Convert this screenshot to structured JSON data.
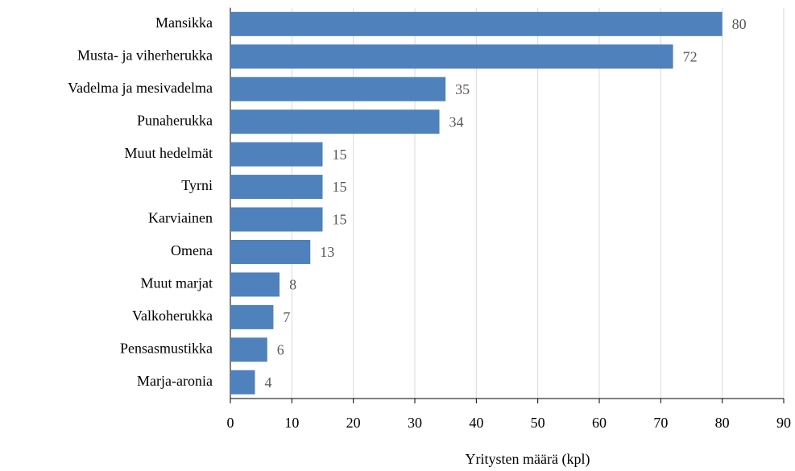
{
  "chart_data": {
    "type": "hbar",
    "categories": [
      "Mansikka",
      "Musta- ja viherherukka",
      "Vadelma ja mesivadelma",
      "Punaherukka",
      "Muut hedelmät",
      "Tyrni",
      "Karviainen",
      "Omena",
      "Muut marjat",
      "Valkoherukka",
      "Pensasmustikka",
      "Marja-aronia"
    ],
    "values": [
      80,
      72,
      35,
      34,
      15,
      15,
      15,
      13,
      8,
      7,
      6,
      4
    ],
    "color": "#4f81bd",
    "x_label": "Yritysten määrä (kpl)",
    "xlim": [
      0,
      90
    ],
    "xticks": [
      0,
      10,
      20,
      30,
      40,
      50,
      60,
      70,
      80,
      90
    ],
    "grid": true
  }
}
